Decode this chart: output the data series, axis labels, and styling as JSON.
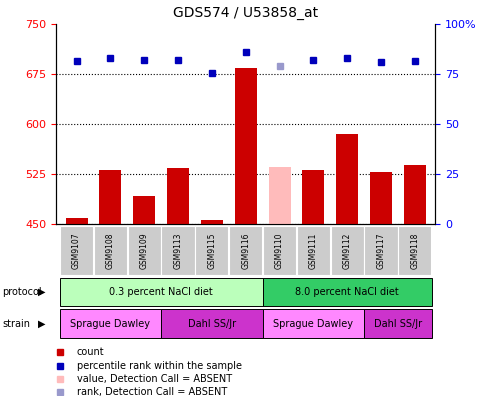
{
  "title": "GDS574 / U53858_at",
  "samples": [
    "GSM9107",
    "GSM9108",
    "GSM9109",
    "GSM9113",
    "GSM9115",
    "GSM9116",
    "GSM9110",
    "GSM9111",
    "GSM9112",
    "GSM9117",
    "GSM9118"
  ],
  "counts": [
    458,
    530,
    492,
    533,
    455,
    683,
    null,
    530,
    585,
    527,
    538
  ],
  "absent_count": [
    null,
    null,
    null,
    null,
    null,
    null,
    535,
    null,
    null,
    null,
    null
  ],
  "ranks": [
    694,
    698,
    695,
    695,
    676,
    707,
    null,
    695,
    699,
    693,
    694
  ],
  "absent_rank": [
    null,
    null,
    null,
    null,
    null,
    null,
    687,
    null,
    null,
    null,
    null
  ],
  "ylim_left": [
    450,
    750
  ],
  "ylim_right": [
    0,
    100
  ],
  "yticks_left": [
    450,
    525,
    600,
    675,
    750
  ],
  "yticks_right": [
    0,
    25,
    50,
    75,
    100
  ],
  "bar_color": "#cc0000",
  "absent_bar_color": "#ffbbbb",
  "rank_color": "#0000bb",
  "absent_rank_color": "#9999cc",
  "protocol_groups": [
    {
      "label": "0.3 percent NaCl diet",
      "start": 0,
      "end": 6,
      "color": "#bbffbb"
    },
    {
      "label": "8.0 percent NaCl diet",
      "start": 6,
      "end": 11,
      "color": "#33cc66"
    }
  ],
  "strain_groups": [
    {
      "label": "Sprague Dawley",
      "start": 0,
      "end": 3,
      "color": "#ff88ff"
    },
    {
      "label": "Dahl SS/Jr",
      "start": 3,
      "end": 6,
      "color": "#cc33cc"
    },
    {
      "label": "Sprague Dawley",
      "start": 6,
      "end": 9,
      "color": "#ff88ff"
    },
    {
      "label": "Dahl SS/Jr",
      "start": 9,
      "end": 11,
      "color": "#cc33cc"
    }
  ],
  "legend_items": [
    {
      "label": "count",
      "color": "#cc0000"
    },
    {
      "label": "percentile rank within the sample",
      "color": "#0000bb"
    },
    {
      "label": "value, Detection Call = ABSENT",
      "color": "#ffbbbb"
    },
    {
      "label": "rank, Detection Call = ABSENT",
      "color": "#9999cc"
    }
  ],
  "bg_color": "#ffffff",
  "sample_area_color": "#cccccc"
}
